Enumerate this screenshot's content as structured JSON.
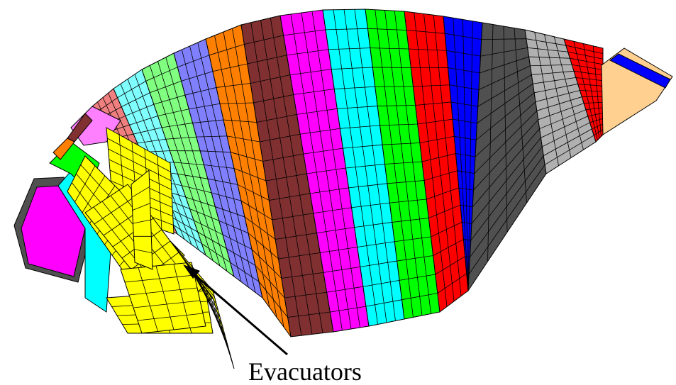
{
  "label": "Evacuators"
}
